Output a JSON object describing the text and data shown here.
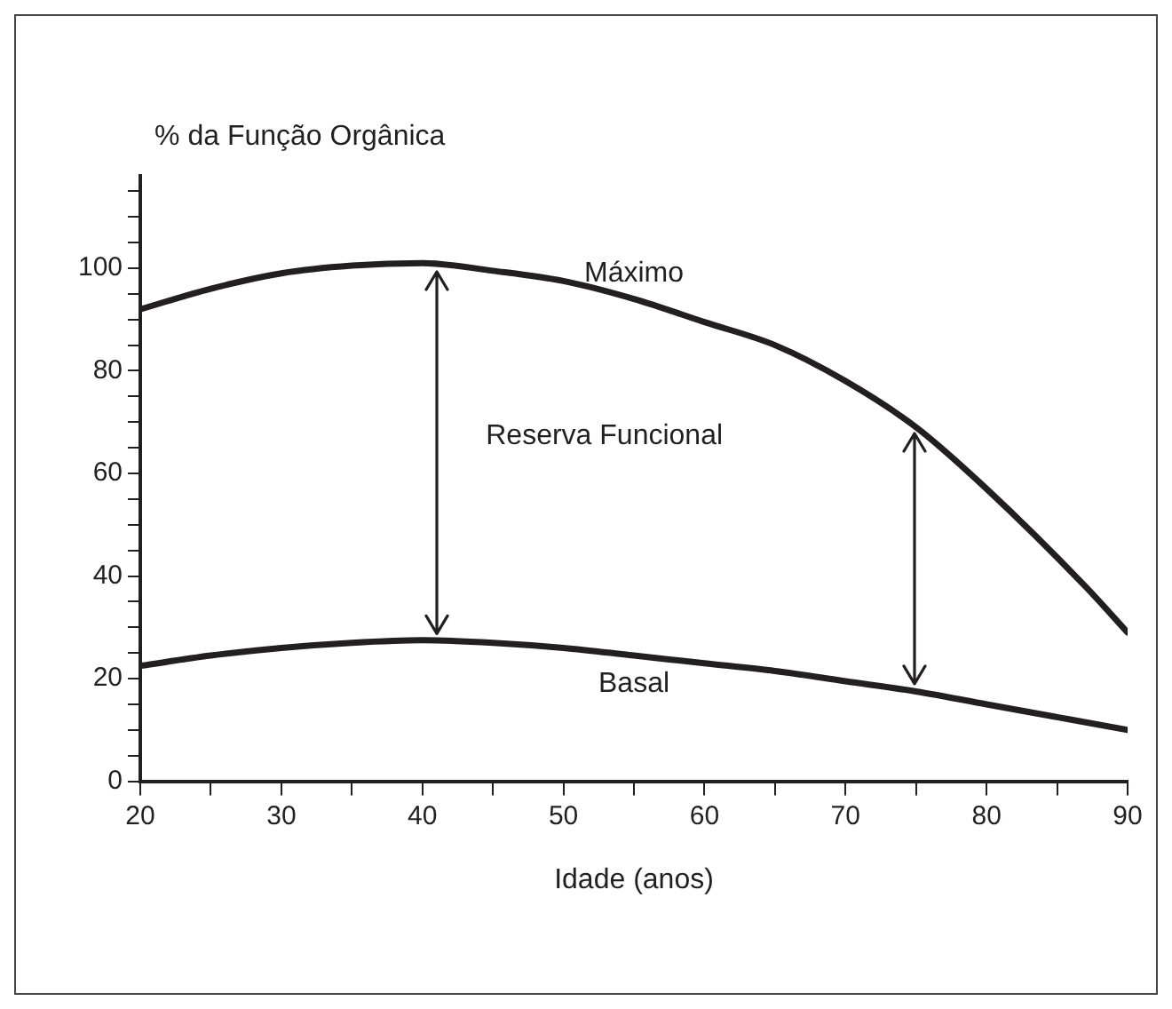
{
  "chart_data": {
    "type": "line",
    "ylabel": "% da Função Orgânica",
    "xlabel": "Idade (anos)",
    "series": [
      {
        "name": "Máximo",
        "color": "#231f20",
        "x": [
          20,
          25,
          30,
          35,
          40,
          45,
          50,
          55,
          60,
          65,
          70,
          75,
          80,
          87,
          90
        ],
        "values": [
          92,
          96,
          99,
          100.5,
          101,
          99.5,
          97.5,
          94,
          89.5,
          85,
          78,
          69,
          57,
          38,
          29
        ]
      },
      {
        "name": "Basal",
        "color": "#231f20",
        "x": [
          20,
          25,
          30,
          35,
          40,
          45,
          50,
          55,
          60,
          65,
          70,
          75,
          80,
          85,
          90
        ],
        "values": [
          22.5,
          24.5,
          26,
          27,
          27.5,
          27,
          26,
          24.5,
          23,
          21.5,
          19.5,
          17.5,
          15,
          12.5,
          10
        ]
      }
    ],
    "annotations": [
      "Reserva Funcional"
    ],
    "xlim": [
      20,
      90
    ],
    "xticks": [
      20,
      {
        "value": 25,
        "label": null
      },
      30,
      {
        "value": 35,
        "label": null
      },
      40,
      {
        "value": 45,
        "label": null
      },
      50,
      {
        "value": 55,
        "label": null
      },
      60,
      {
        "value": 65,
        "label": null
      },
      70,
      {
        "value": 75,
        "label": null
      },
      80,
      {
        "value": 85,
        "label": null
      },
      90
    ],
    "ylim": [
      0,
      118
    ],
    "yticks": [
      0,
      {
        "value": 5,
        "label": null
      },
      {
        "value": 10,
        "label": null
      },
      {
        "value": 15,
        "label": null
      },
      20,
      {
        "value": 25,
        "label": null
      },
      {
        "value": 30,
        "label": null
      },
      {
        "value": 35,
        "label": null
      },
      40,
      {
        "value": 45,
        "label": null
      },
      {
        "value": 50,
        "label": null
      },
      {
        "value": 55,
        "label": null
      },
      60,
      {
        "value": 65,
        "label": null
      },
      {
        "value": 70,
        "label": null
      },
      {
        "value": 75,
        "label": null
      },
      80,
      {
        "value": 85,
        "label": null
      },
      {
        "value": 90,
        "label": null
      },
      {
        "value": 95,
        "label": null
      },
      100,
      {
        "value": 105,
        "label": null
      },
      {
        "value": 110,
        "label": null
      },
      {
        "value": 115,
        "label": null
      }
    ],
    "grid": false,
    "legend": false,
    "marker": "none",
    "line_style": "solid"
  }
}
